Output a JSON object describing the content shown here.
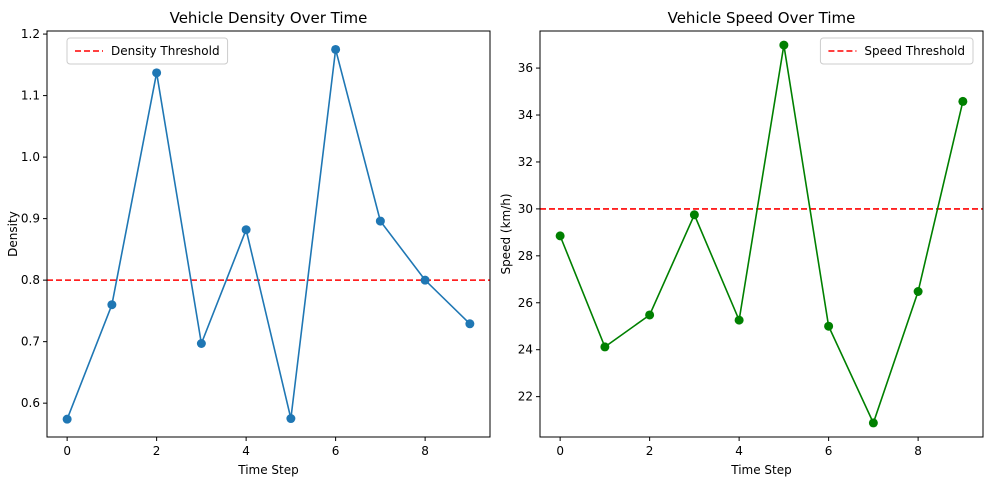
{
  "chart_data": [
    {
      "type": "line",
      "title": "Vehicle Density Over Time",
      "xlabel": "Time Step",
      "ylabel": "Density",
      "x": [
        0,
        1,
        2,
        3,
        4,
        5,
        6,
        7,
        8,
        9
      ],
      "series": [
        {
          "values": [
            0.574,
            0.76,
            1.137,
            0.697,
            0.882,
            0.575,
            1.175,
            0.896,
            0.8,
            0.729
          ],
          "color": "#1f77b4"
        }
      ],
      "threshold": {
        "label": "Density Threshold",
        "value": 0.8,
        "color": "#ff0000"
      },
      "xlim": [
        -0.45,
        9.45
      ],
      "ylim": [
        0.545,
        1.205
      ],
      "xticks": [
        0,
        2,
        4,
        6,
        8
      ],
      "xtick_labels": [
        "0",
        "2",
        "4",
        "6",
        "8"
      ],
      "yticks": [
        0.6,
        0.7,
        0.8,
        0.9,
        1.0,
        1.1,
        1.2
      ],
      "ytick_labels": [
        "0.6",
        "0.7",
        "0.8",
        "0.9",
        "1.0",
        "1.1",
        "1.2"
      ],
      "legend_position": "top-left",
      "grid": false
    },
    {
      "type": "line",
      "title": "Vehicle Speed Over Time",
      "xlabel": "Time Step",
      "ylabel": "Speed (km/h)",
      "x": [
        0,
        1,
        2,
        3,
        4,
        5,
        6,
        7,
        8,
        9
      ],
      "series": [
        {
          "values": [
            28.85,
            24.12,
            25.48,
            29.75,
            25.26,
            36.98,
            25.0,
            20.88,
            26.48,
            34.58
          ],
          "color": "#008000"
        }
      ],
      "threshold": {
        "label": "Speed Threshold",
        "value": 30,
        "color": "#ff0000"
      },
      "xlim": [
        -0.45,
        9.45
      ],
      "ylim": [
        20.28,
        37.58
      ],
      "xticks": [
        0,
        2,
        4,
        6,
        8
      ],
      "xtick_labels": [
        "0",
        "2",
        "4",
        "6",
        "8"
      ],
      "yticks": [
        22,
        24,
        26,
        28,
        30,
        32,
        34,
        36
      ],
      "ytick_labels": [
        "22",
        "24",
        "26",
        "28",
        "30",
        "32",
        "34",
        "36"
      ],
      "legend_position": "top-right",
      "grid": false
    }
  ]
}
